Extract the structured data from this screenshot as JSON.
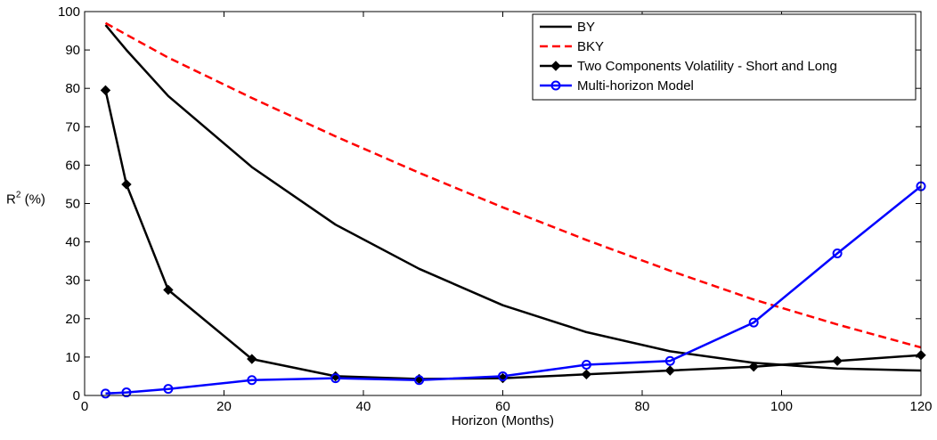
{
  "chart_data": {
    "type": "line",
    "title": "",
    "xlabel": "Horizon (Months)",
    "ylabel_main": "R",
    "ylabel_sup": "2",
    "ylabel_suffix": " (%)",
    "xlim": [
      0,
      120
    ],
    "ylim": [
      0,
      100
    ],
    "xticks": [
      "0",
      "20",
      "40",
      "60",
      "80",
      "100",
      "120"
    ],
    "yticks": [
      "0",
      "10",
      "20",
      "30",
      "40",
      "50",
      "60",
      "70",
      "80",
      "90",
      "100"
    ],
    "grid": false,
    "legend_position": "top-right",
    "series": [
      {
        "name": "BY",
        "color": "#000000",
        "dash": "solid",
        "marker": "none",
        "x": [
          3,
          6,
          12,
          24,
          36,
          48,
          60,
          72,
          84,
          96,
          108,
          120
        ],
        "y": [
          96.5,
          90,
          78,
          59.5,
          44.5,
          33,
          23.5,
          16.5,
          11.5,
          8.5,
          7,
          6.5
        ]
      },
      {
        "name": "BKY",
        "color": "#ff0000",
        "dash": "dashed",
        "marker": "none",
        "x": [
          3,
          6,
          12,
          24,
          36,
          48,
          60,
          72,
          84,
          96,
          108,
          120
        ],
        "y": [
          97,
          94,
          88,
          77.5,
          67.5,
          58,
          49,
          40.5,
          32.5,
          25,
          18.5,
          12.5
        ]
      },
      {
        "name": "Two Components Volatility - Short and Long",
        "color": "#000000",
        "dash": "solid",
        "marker": "diamond",
        "x": [
          3,
          6,
          12,
          24,
          36,
          48,
          60,
          72,
          84,
          96,
          108,
          120
        ],
        "y": [
          79.5,
          55,
          27.5,
          9.5,
          5,
          4.3,
          4.5,
          5.5,
          6.5,
          7.5,
          9,
          10.5
        ]
      },
      {
        "name": "Multi-horizon Model",
        "color": "#0000ff",
        "dash": "solid",
        "marker": "circle",
        "x": [
          3,
          6,
          12,
          24,
          36,
          48,
          60,
          72,
          84,
          96,
          108,
          120
        ],
        "y": [
          0.5,
          0.8,
          1.7,
          4,
          4.5,
          4,
          5,
          8,
          9,
          19,
          37,
          54.5
        ]
      }
    ]
  }
}
